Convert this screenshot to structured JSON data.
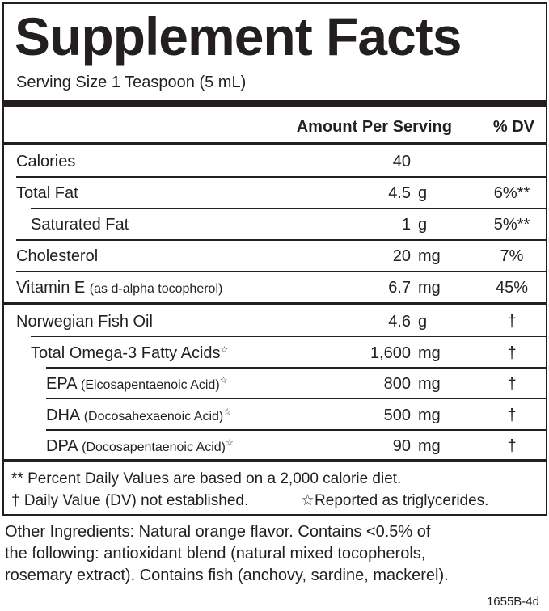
{
  "title": "Supplement Facts",
  "serving_size": "Serving Size 1 Teaspoon (5 mL)",
  "header": {
    "amount": "Amount Per Serving",
    "dv": "% DV"
  },
  "sections": [
    {
      "rows": [
        {
          "name": "Calories",
          "amount": "40"
        },
        {
          "name": "Total Fat",
          "amount": "4.5",
          "unit": "g",
          "dv": "6%**"
        },
        {
          "name": "Saturated Fat",
          "amount": "1",
          "unit": "g",
          "dv": "5%**",
          "indent": 1
        },
        {
          "name": "Cholesterol",
          "amount": "20",
          "unit": "mg",
          "dv": "7%"
        },
        {
          "name": "Vitamin E",
          "qualifier": "(as d-alpha tocopherol)",
          "amount": "6.7",
          "unit": "mg",
          "dv": "45%"
        }
      ]
    },
    {
      "rows": [
        {
          "name": "Norwegian Fish Oil",
          "amount": "4.6",
          "unit": "g",
          "dv": "†"
        },
        {
          "name": "Total Omega-3 Fatty Acids",
          "mark": "☆",
          "amount": "1,600",
          "unit": "mg",
          "dv": "†",
          "indent": 1
        },
        {
          "name": "EPA",
          "qualifier": "(Eicosapentaenoic Acid)",
          "mark": "☆",
          "amount": "800",
          "unit": "mg",
          "dv": "†",
          "indent": 2
        },
        {
          "name": "DHA",
          "qualifier": "(Docosahexaenoic Acid)",
          "mark": "☆",
          "amount": "500",
          "unit": "mg",
          "dv": "†",
          "indent": 2
        },
        {
          "name": "DPA",
          "qualifier": "(Docosapentaenoic Acid)",
          "mark": "☆",
          "amount": "90",
          "unit": "mg",
          "dv": "†",
          "indent": 2
        }
      ]
    }
  ],
  "footnotes": [
    "** Percent Daily Values are based on a 2,000 calorie diet.",
    "† Daily Value (DV) not established.",
    "☆Reported as triglycerides."
  ],
  "other_ingredients": [
    "Other Ingredients: Natural orange flavor. Contains <0.5% of",
    "the following: antioxidant blend (natural mixed tocopherols,",
    "rosemary extract). Contains fish (anchovy, sardine, mackerel)."
  ],
  "code": "1655B-4d"
}
